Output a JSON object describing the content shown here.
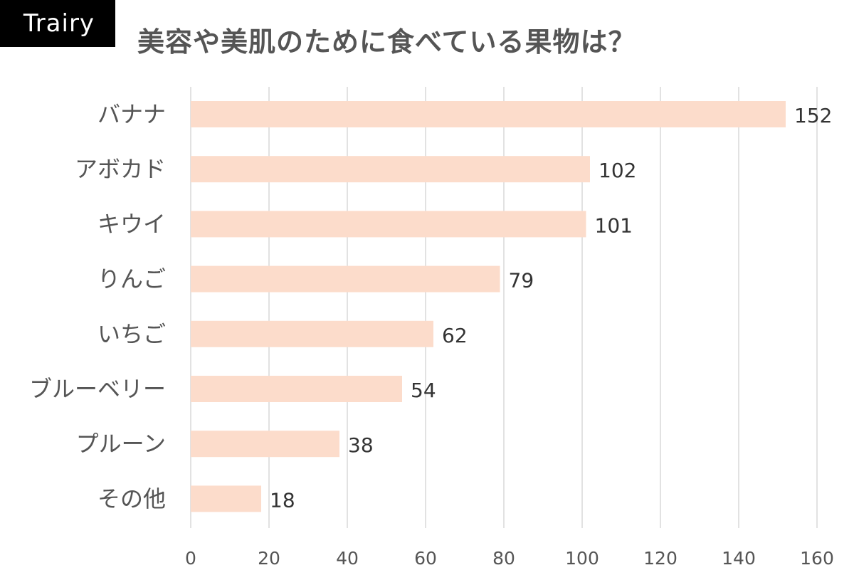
{
  "brand": {
    "label": "Trairy"
  },
  "colors": {
    "bar": "#fcdccb",
    "grid": "#d9d9d9",
    "badge": "#000000"
  },
  "chart_data": {
    "type": "bar",
    "orientation": "horizontal",
    "title": "美容や美肌のために食べている果物は？",
    "categories": [
      "バナナ",
      "アボカド",
      "キウイ",
      "りんご",
      "いちご",
      "ブルーベリー",
      "プルーン",
      "その他"
    ],
    "values": [
      152,
      102,
      101,
      79,
      62,
      54,
      38,
      18
    ],
    "xlim": [
      0,
      160
    ],
    "xticks": [
      0,
      20,
      40,
      60,
      80,
      100,
      120,
      140,
      160
    ],
    "grid": true,
    "data_labels": true
  }
}
